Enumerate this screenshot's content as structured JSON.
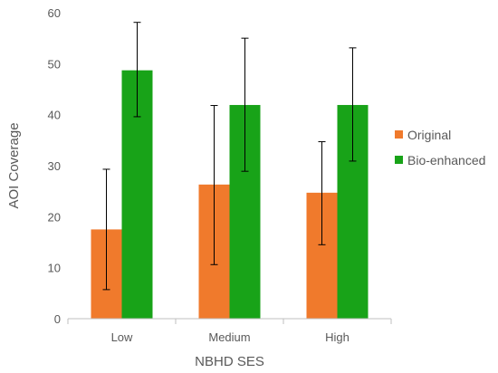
{
  "chart_data": {
    "type": "bar",
    "categories": [
      "Low",
      "Medium",
      "High"
    ],
    "series": [
      {
        "name": "Original",
        "color": "#f07a2c",
        "values": [
          17.5,
          26.3,
          24.7
        ],
        "error_low": [
          5.7,
          10.6,
          14.5
        ],
        "error_high": [
          29.3,
          41.8,
          34.7
        ]
      },
      {
        "name": "Bio-enhanced",
        "color": "#18a318",
        "values": [
          48.7,
          41.9,
          41.9
        ],
        "error_low": [
          39.6,
          28.9,
          30.9
        ],
        "error_high": [
          58.1,
          55.0,
          53.1
        ]
      }
    ],
    "xlabel": "NBHD SES",
    "ylabel": "AOI Coverage",
    "ylim": [
      0,
      60
    ],
    "yticks": [
      "0",
      "10",
      "20",
      "30",
      "40",
      "50",
      "60"
    ],
    "grid": false,
    "legend_position": "right"
  }
}
